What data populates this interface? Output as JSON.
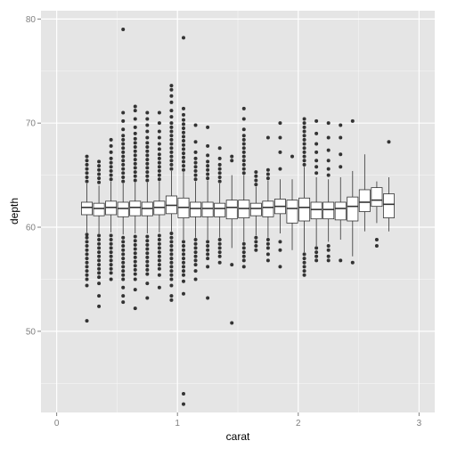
{
  "chart_data": {
    "type": "boxplot",
    "xlabel": "carat",
    "ylabel": "depth",
    "xlim": [
      -0.13,
      3.13
    ],
    "ylim": [
      42.2,
      80.8
    ],
    "x_ticks": [
      0,
      1,
      2,
      3
    ],
    "x_tick_labels": [
      "0",
      "1",
      "2",
      "3"
    ],
    "y_ticks": [
      50,
      60,
      70,
      80
    ],
    "y_tick_labels": [
      "50",
      "60",
      "70",
      "80"
    ],
    "grid": true,
    "panel_background": "#e5e5e5",
    "grid_color": "#ffffff",
    "box_fill": "#ffffff",
    "box_stroke": "#333333",
    "outlier_color": "#333333",
    "box_width": 0.09,
    "boxes": [
      {
        "x": 0.25,
        "q1": 61.2,
        "median": 61.9,
        "q3": 62.4,
        "lower": 59.5,
        "upper": 64.2,
        "outliers_low": [
          59.3,
          59.0,
          58.6,
          58.2,
          57.8,
          57.4,
          57.0,
          56.6,
          56.2,
          55.8,
          55.4,
          55.0,
          54.4,
          51.0
        ],
        "outliers_high": [
          64.4,
          64.8,
          65.2,
          65.6,
          66.0,
          66.4,
          66.8
        ]
      },
      {
        "x": 0.35,
        "q1": 61.1,
        "median": 61.8,
        "q3": 62.3,
        "lower": 59.4,
        "upper": 64.0,
        "outliers_low": [
          59.2,
          58.8,
          58.4,
          58.0,
          57.6,
          57.2,
          56.8,
          56.4,
          56.0,
          55.6,
          55.2,
          54.6,
          53.4,
          52.4
        ],
        "outliers_high": [
          64.3,
          64.7,
          65.1,
          65.5,
          65.9,
          66.3
        ]
      },
      {
        "x": 0.45,
        "q1": 61.2,
        "median": 61.9,
        "q3": 62.5,
        "lower": 59.5,
        "upper": 64.4,
        "outliers_low": [
          59.2,
          58.8,
          58.4,
          58.0,
          57.6,
          57.2,
          56.8,
          56.4,
          56.0,
          55.6,
          55.0
        ],
        "outliers_high": [
          64.6,
          65.0,
          65.4,
          65.8,
          66.2,
          66.6,
          67.2,
          67.8,
          68.4
        ]
      },
      {
        "x": 0.55,
        "q1": 61.0,
        "median": 61.8,
        "q3": 62.4,
        "lower": 59.3,
        "upper": 64.2,
        "outliers_low": [
          59.0,
          58.6,
          58.2,
          57.8,
          57.4,
          57.0,
          56.6,
          56.2,
          55.8,
          55.4,
          55.0,
          54.2,
          53.4,
          52.8
        ],
        "outliers_high": [
          64.4,
          64.8,
          65.2,
          65.6,
          66.0,
          66.4,
          66.8,
          67.2,
          67.6,
          68.0,
          68.4,
          68.8,
          69.4,
          70.2,
          71.0,
          79.0
        ]
      },
      {
        "x": 0.65,
        "q1": 61.1,
        "median": 61.9,
        "q3": 62.5,
        "lower": 59.4,
        "upper": 64.3,
        "outliers_low": [
          59.1,
          58.7,
          58.3,
          57.9,
          57.5,
          57.1,
          56.7,
          56.3,
          55.9,
          55.5,
          55.0,
          54.0,
          52.2
        ],
        "outliers_high": [
          64.5,
          64.9,
          65.3,
          65.7,
          66.1,
          66.5,
          66.9,
          67.3,
          67.7,
          68.1,
          68.5,
          69.0,
          69.6,
          70.4,
          71.2,
          71.6
        ]
      },
      {
        "x": 0.75,
        "q1": 61.1,
        "median": 61.8,
        "q3": 62.4,
        "lower": 59.4,
        "upper": 64.3,
        "outliers_low": [
          59.1,
          58.7,
          58.3,
          57.9,
          57.5,
          57.1,
          56.7,
          56.3,
          55.9,
          55.5,
          54.6,
          53.2
        ],
        "outliers_high": [
          64.5,
          64.9,
          65.3,
          65.7,
          66.1,
          66.5,
          66.9,
          67.3,
          67.7,
          68.1,
          68.6,
          69.2,
          69.8,
          70.4,
          71.0
        ]
      },
      {
        "x": 0.85,
        "q1": 61.2,
        "median": 61.9,
        "q3": 62.5,
        "lower": 59.5,
        "upper": 64.4,
        "outliers_low": [
          59.2,
          58.8,
          58.4,
          58.0,
          57.6,
          57.2,
          56.8,
          56.4,
          56.0,
          55.4,
          54.2
        ],
        "outliers_high": [
          64.6,
          65.0,
          65.4,
          65.8,
          66.2,
          66.6,
          67.0,
          67.5,
          68.0,
          68.6,
          69.2,
          70.0,
          71.0
        ]
      },
      {
        "x": 0.95,
        "q1": 61.3,
        "median": 62.1,
        "q3": 63.0,
        "lower": 59.6,
        "upper": 65.4,
        "outliers_low": [
          59.4,
          59.0,
          58.6,
          58.2,
          57.8,
          57.4,
          57.0,
          56.6,
          56.2,
          55.8,
          55.4,
          55.0,
          54.4,
          53.4,
          53.0
        ],
        "outliers_high": [
          65.6,
          66.0,
          66.4,
          66.8,
          67.2,
          67.6,
          68.0,
          68.4,
          68.8,
          69.2,
          69.6,
          70.0,
          70.6,
          71.2,
          72.0,
          72.6,
          73.2,
          73.6
        ]
      },
      {
        "x": 1.05,
        "q1": 60.9,
        "median": 61.9,
        "q3": 62.8,
        "lower": 58.8,
        "upper": 65.3,
        "outliers_low": [
          58.6,
          58.2,
          57.8,
          57.4,
          57.0,
          56.6,
          56.2,
          55.8,
          55.4,
          54.8,
          53.6,
          44.0,
          43.0
        ],
        "outliers_high": [
          65.5,
          65.9,
          66.3,
          66.7,
          67.1,
          67.5,
          67.9,
          68.3,
          68.7,
          69.1,
          69.5,
          69.9,
          70.3,
          70.8,
          71.4,
          78.2
        ]
      },
      {
        "x": 1.15,
        "q1": 61.0,
        "median": 61.8,
        "q3": 62.4,
        "lower": 59.0,
        "upper": 64.4,
        "outliers_low": [
          58.8,
          58.4,
          58.0,
          57.6,
          57.2,
          56.8,
          56.4,
          55.8,
          55.0
        ],
        "outliers_high": [
          64.6,
          65.0,
          65.4,
          65.8,
          66.2,
          66.6,
          67.2,
          68.2,
          69.8
        ]
      },
      {
        "x": 1.25,
        "q1": 61.0,
        "median": 61.8,
        "q3": 62.4,
        "lower": 58.8,
        "upper": 64.5,
        "outliers_low": [
          58.6,
          58.2,
          57.8,
          57.4,
          57.0,
          56.2,
          53.2
        ],
        "outliers_high": [
          64.7,
          65.1,
          65.5,
          65.9,
          66.3,
          66.9,
          67.8,
          69.6
        ]
      },
      {
        "x": 1.35,
        "q1": 61.0,
        "median": 61.8,
        "q3": 62.3,
        "lower": 59.0,
        "upper": 64.2,
        "outliers_low": [
          58.8,
          58.4,
          58.0,
          57.6,
          57.2,
          56.6
        ],
        "outliers_high": [
          64.4,
          64.8,
          65.2,
          65.6,
          66.0,
          66.6,
          67.6
        ]
      },
      {
        "x": 1.45,
        "q1": 60.8,
        "median": 61.9,
        "q3": 62.6,
        "lower": 58.0,
        "upper": 65.0,
        "outliers_low": [
          56.4,
          50.8
        ],
        "outliers_high": [
          66.4,
          66.8
        ]
      },
      {
        "x": 1.55,
        "q1": 60.9,
        "median": 61.8,
        "q3": 62.6,
        "lower": 58.6,
        "upper": 65.0,
        "outliers_low": [
          58.4,
          58.0,
          57.6,
          57.2,
          56.8,
          56.2
        ],
        "outliers_high": [
          65.2,
          65.6,
          66.0,
          66.4,
          66.8,
          67.2,
          67.6,
          68.0,
          68.4,
          68.8,
          69.4,
          70.4,
          71.4
        ]
      },
      {
        "x": 1.65,
        "q1": 61.1,
        "median": 61.8,
        "q3": 62.3,
        "lower": 59.2,
        "upper": 63.9,
        "outliers_low": [
          59.0,
          58.6,
          58.2,
          57.8
        ],
        "outliers_high": [
          64.1,
          64.5,
          64.9,
          65.3
        ]
      },
      {
        "x": 1.75,
        "q1": 61.0,
        "median": 61.9,
        "q3": 62.5,
        "lower": 59.0,
        "upper": 64.5,
        "outliers_low": [
          58.8,
          58.4,
          58.0,
          57.4,
          56.8
        ],
        "outliers_high": [
          64.7,
          65.1,
          65.5,
          68.6
        ]
      },
      {
        "x": 1.85,
        "q1": 61.3,
        "median": 62.0,
        "q3": 62.7,
        "lower": 59.4,
        "upper": 64.6,
        "outliers_low": [
          58.6,
          57.8,
          56.2
        ],
        "outliers_high": [
          65.6,
          67.2,
          68.6,
          70.0
        ]
      },
      {
        "x": 1.95,
        "q1": 60.4,
        "median": 61.8,
        "q3": 62.6,
        "lower": 57.8,
        "upper": 64.6,
        "outliers_low": [],
        "outliers_high": [
          66.8
        ]
      },
      {
        "x": 2.05,
        "q1": 60.6,
        "median": 61.9,
        "q3": 62.8,
        "lower": 57.6,
        "upper": 65.8,
        "outliers_low": [
          57.4,
          57.0,
          56.6,
          56.2,
          55.8,
          55.4
        ],
        "outliers_high": [
          66.0,
          66.4,
          66.8,
          67.2,
          67.6,
          68.0,
          68.4,
          68.8,
          69.2,
          69.6,
          70.0,
          70.4
        ]
      },
      {
        "x": 2.15,
        "q1": 60.8,
        "median": 61.7,
        "q3": 62.4,
        "lower": 58.2,
        "upper": 64.8,
        "outliers_low": [
          58.0,
          57.6,
          57.2,
          56.8
        ],
        "outliers_high": [
          65.2,
          65.8,
          66.4,
          67.2,
          68.0,
          69.0,
          70.2
        ]
      },
      {
        "x": 2.25,
        "q1": 60.8,
        "median": 61.7,
        "q3": 62.4,
        "lower": 58.6,
        "upper": 64.6,
        "outliers_low": [
          58.2,
          57.8,
          57.2,
          56.8
        ],
        "outliers_high": [
          65.0,
          65.6,
          66.4,
          67.4,
          68.6,
          70.0
        ]
      },
      {
        "x": 2.35,
        "q1": 60.7,
        "median": 61.8,
        "q3": 62.4,
        "lower": 58.8,
        "upper": 64.8,
        "outliers_low": [
          56.8
        ],
        "outliers_high": [
          65.8,
          67.0,
          68.6,
          69.8
        ]
      },
      {
        "x": 2.45,
        "q1": 60.6,
        "median": 62.0,
        "q3": 62.9,
        "lower": 57.2,
        "upper": 65.4,
        "outliers_low": [
          56.6
        ],
        "outliers_high": [
          70.2
        ]
      },
      {
        "x": 2.55,
        "q1": 61.5,
        "median": 62.4,
        "q3": 63.6,
        "lower": 59.6,
        "upper": 67.0,
        "outliers_low": [],
        "outliers_high": []
      },
      {
        "x": 2.65,
        "q1": 62.0,
        "median": 62.6,
        "q3": 63.8,
        "lower": 60.4,
        "upper": 64.4,
        "outliers_low": [
          58.8,
          58.2
        ],
        "outliers_high": []
      },
      {
        "x": 2.75,
        "q1": 60.9,
        "median": 62.2,
        "q3": 63.2,
        "lower": 59.6,
        "upper": 64.8,
        "outliers_low": [],
        "outliers_high": [
          68.2
        ]
      }
    ]
  }
}
